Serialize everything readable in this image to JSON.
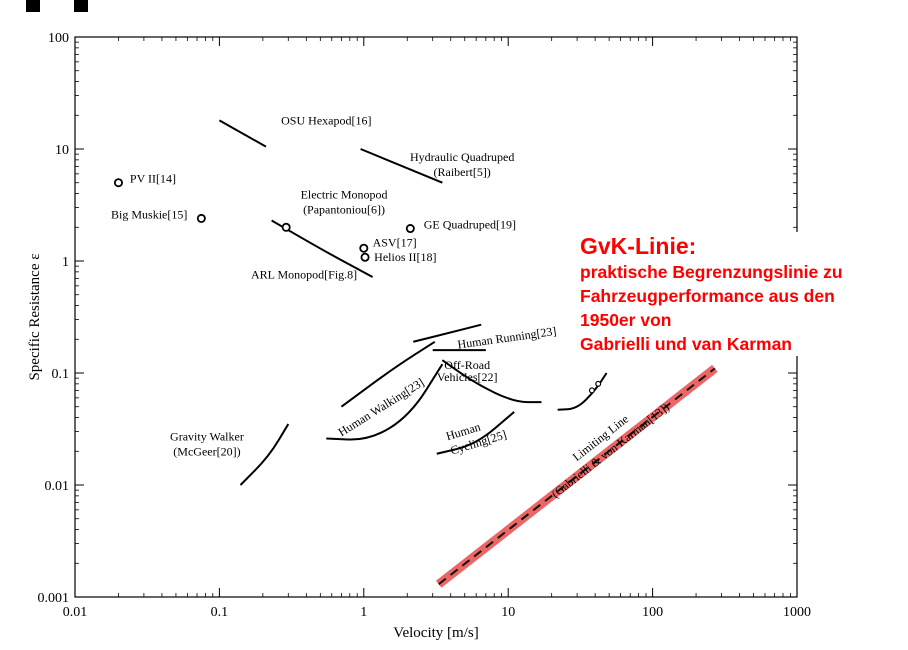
{
  "chart_data": {
    "type": "scatter",
    "xlabel": "Velocity [m/s]",
    "ylabel": "Specific Resistance ε",
    "x_scale": "log",
    "y_scale": "log",
    "xlim": [
      0.01,
      1000
    ],
    "ylim": [
      0.001,
      100
    ],
    "x_ticks": [
      "0.01",
      "0.1",
      "1",
      "10",
      "100",
      "1000"
    ],
    "y_ticks": [
      "0.001",
      "0.01",
      "0.1",
      "1",
      "10",
      "100"
    ],
    "grid": false,
    "points": [
      {
        "label": "PV II[14]",
        "x": 0.02,
        "y": 5.0
      },
      {
        "label": "Big Muskie[15]",
        "x": 0.075,
        "y": 2.4
      },
      {
        "label": "Electric Monopod\n(Papantoniou[6])",
        "x": 0.29,
        "y": 2.0
      },
      {
        "label": "ASV[17]",
        "x": 1.0,
        "y": 1.3
      },
      {
        "label": "Helios II[18]",
        "x": 1.02,
        "y": 1.08
      },
      {
        "label": "GE Quadruped[19]",
        "x": 2.1,
        "y": 1.95
      }
    ],
    "curves": [
      {
        "label": "OSU Hexapod[16]",
        "x": [
          0.1,
          0.21
        ],
        "y": [
          18,
          10.5
        ]
      },
      {
        "label": "Hydraulic Quadruped\n(Raibert[5])",
        "x": [
          0.95,
          3.5
        ],
        "y": [
          10,
          5.0
        ]
      },
      {
        "label": "ARL Monopod[Fig.8]",
        "x": [
          0.23,
          0.55,
          1.15
        ],
        "y": [
          2.3,
          1.2,
          0.72
        ]
      },
      {
        "label": "Human Running[23]",
        "x": [
          2.2,
          4.0,
          6.5
        ],
        "y": [
          0.19,
          0.23,
          0.27
        ]
      },
      {
        "label": "",
        "x": [
          3.0,
          7.0
        ],
        "y": [
          0.16,
          0.16
        ]
      },
      {
        "label": "Human Walking[23]",
        "x": [
          0.7,
          1.6,
          3.1
        ],
        "y": [
          0.05,
          0.11,
          0.19
        ]
      },
      {
        "label": "",
        "x": [
          0.55,
          1.1,
          2.1,
          3.5
        ],
        "y": [
          0.026,
          0.025,
          0.042,
          0.12
        ]
      },
      {
        "label": "Off-Road\nVehicles[22]",
        "x": [
          3.5,
          6,
          11,
          17
        ],
        "y": [
          0.13,
          0.08,
          0.055,
          0.055
        ]
      },
      {
        "label": "Human\nCycling[25]",
        "x": [
          3.2,
          6,
          11
        ],
        "y": [
          0.019,
          0.023,
          0.045
        ]
      },
      {
        "label": "Gravity Walker\n(McGeer[20])",
        "x": [
          0.14,
          0.22,
          0.3
        ],
        "y": [
          0.01,
          0.018,
          0.035
        ]
      },
      {
        "label": "",
        "x": [
          22,
          30,
          40,
          48
        ],
        "y": [
          0.047,
          0.048,
          0.07,
          0.1
        ]
      }
    ],
    "limiting_line": {
      "label": "Limiting Line\n(Gabrielli & von Karman[13])",
      "x": [
        3.3,
        270
      ],
      "y": [
        0.0013,
        0.11
      ],
      "color": "#e84040"
    }
  },
  "overlay": {
    "title": "GvK-Linie:",
    "body": "praktische Begrenzungslinie zu\nFahrzeugperformance aus den\n1950er von\nGabrielli und van Karman",
    "color": "#ff0000"
  }
}
